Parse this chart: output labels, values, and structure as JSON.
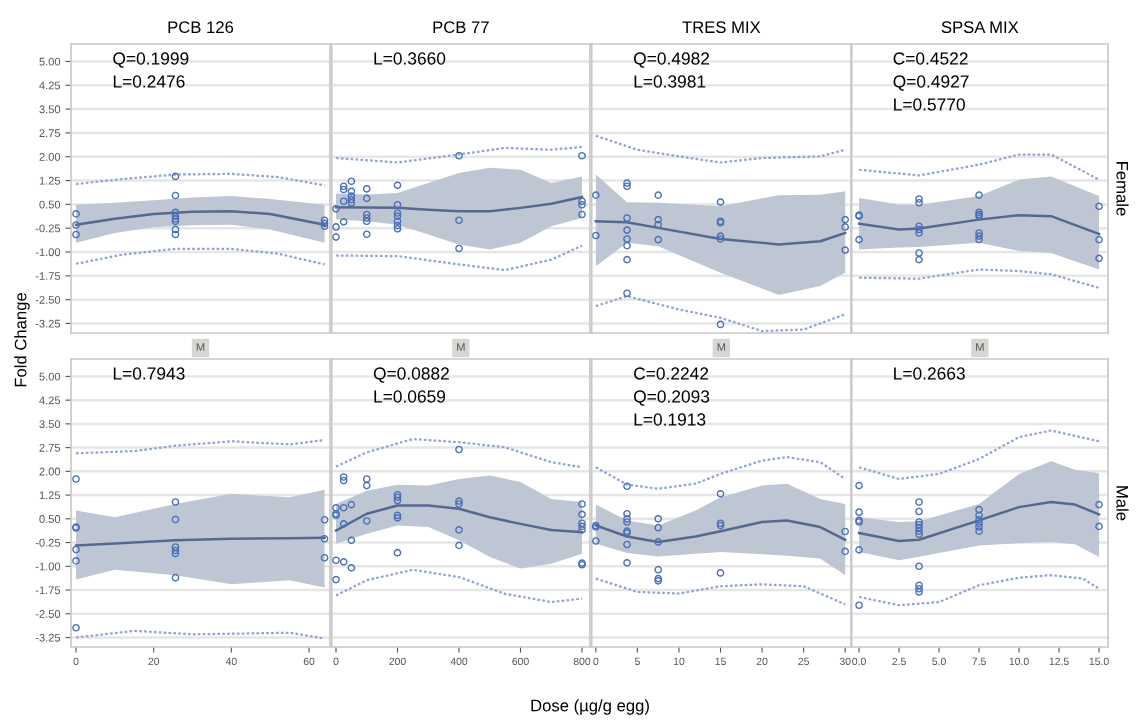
{
  "chart_data": [
    {
      "type": "scatter",
      "title": "PCB 126",
      "ylabel": "Fold Change",
      "annotations": [
        "Q=0.1999",
        "L=0.2476"
      ],
      "xlim": [
        -1.3,
        65.4
      ],
      "ylim": [
        -3.55,
        5.55
      ],
      "yticks": [
        {
          "value": 5,
          "label": "5.00"
        },
        {
          "value": 4.25,
          "label": "4.25"
        },
        {
          "value": 3.5,
          "label": "3.50"
        },
        {
          "value": 2.75,
          "label": "2.75"
        },
        {
          "value": 2,
          "label": "2.00"
        },
        {
          "value": 1.25,
          "label": "1.25"
        },
        {
          "value": 0.5,
          "label": "0.50"
        },
        {
          "value": -0.25,
          "label": "-0.25"
        },
        {
          "value": -1,
          "label": "-1.00"
        },
        {
          "value": -1.75,
          "label": "-1.75"
        },
        {
          "value": -2.5,
          "label": "-2.50"
        },
        {
          "value": -3.25,
          "label": "-3.25"
        }
      ],
      "tick_labels": "y",
      "grid": "y",
      "series": [
        {
          "marker": "circle",
          "color": "#4a6fb5",
          "x": [
            0,
            0,
            0,
            25.6,
            25.6,
            25.6,
            25.6,
            25.6,
            25.6,
            25.6,
            25.6,
            64,
            64,
            64
          ],
          "values": [
            0.2,
            -0.15,
            -0.45,
            1.38,
            0.78,
            0.25,
            0.13,
            0.04,
            -0.03,
            -0.29,
            -0.45,
            0.0,
            -0.1,
            -0.19
          ]
        },
        {
          "type": "line",
          "color": "#55698f",
          "x": [
            0,
            10,
            20,
            30,
            40,
            50,
            64
          ],
          "values": [
            -0.14,
            0.05,
            0.2,
            0.27,
            0.28,
            0.2,
            -0.14
          ],
          "lower": [
            -0.71,
            -0.4,
            -0.22,
            -0.16,
            -0.14,
            -0.29,
            -0.71
          ],
          "upper": [
            0.49,
            0.55,
            0.63,
            0.72,
            0.76,
            0.67,
            0.49
          ]
        },
        {
          "type": "line",
          "line_style": "dotted",
          "color": "#8fa3d8",
          "x": [
            0,
            12,
            25.6,
            40,
            52,
            64
          ],
          "values": [
            1.14,
            1.3,
            1.44,
            1.46,
            1.36,
            1.1
          ]
        },
        {
          "type": "line",
          "line_style": "dotted",
          "color": "#8fa3d8",
          "x": [
            0,
            12,
            25.6,
            40,
            52,
            64
          ],
          "values": [
            -1.37,
            -1.08,
            -0.9,
            -0.9,
            -1.05,
            -1.39
          ]
        }
      ]
    },
    {
      "type": "scatter",
      "title": "PCB 77",
      "annotations": [
        "L=0.3660"
      ],
      "xlim": [
        -14,
        826
      ],
      "ylim": [
        -3.55,
        5.55
      ],
      "yticks": [
        5,
        4.25,
        3.5,
        2.75,
        2,
        1.25,
        0.5,
        -0.25,
        -1,
        -1.75,
        -2.5,
        -3.25
      ],
      "tick_labels": false,
      "grid": "y",
      "series": [
        {
          "marker": "circle",
          "color": "#4a6fb5",
          "x": [
            0,
            0,
            0,
            25,
            25,
            25,
            25,
            50,
            50,
            50,
            50,
            50,
            100,
            100,
            100,
            100,
            100,
            100,
            200,
            200,
            200,
            200,
            200,
            200,
            200,
            400,
            400,
            400,
            800,
            800,
            800,
            800
          ],
          "values": [
            0.36,
            -0.21,
            -0.53,
            1.07,
            0.97,
            0.6,
            -0.05,
            1.23,
            0.91,
            0.76,
            0.65,
            0.55,
            0.99,
            0.69,
            0.18,
            0.07,
            -0.03,
            -0.44,
            1.1,
            0.49,
            0.23,
            0.13,
            -0.03,
            -0.17,
            -0.27,
            2.03,
            0.0,
            -0.89,
            2.03,
            0.6,
            0.49,
            0.18
          ]
        },
        {
          "type": "line",
          "color": "#55698f",
          "x": [
            0,
            100,
            200,
            300,
            400,
            500,
            600,
            700,
            800
          ],
          "values": [
            0.41,
            0.4,
            0.39,
            0.33,
            0.28,
            0.28,
            0.39,
            0.52,
            0.73
          ],
          "lower": [
            0.02,
            -0.03,
            -0.14,
            -0.45,
            -0.76,
            -0.92,
            -0.71,
            -0.19,
            0.07
          ],
          "upper": [
            0.84,
            0.81,
            0.86,
            1.17,
            1.49,
            1.65,
            1.59,
            1.17,
            1.38
          ]
        },
        {
          "type": "line",
          "line_style": "dotted",
          "color": "#8fa3d8",
          "x": [
            0,
            200,
            400,
            550,
            700,
            800
          ],
          "values": [
            1.96,
            1.82,
            2.07,
            2.28,
            2.22,
            2.31
          ]
        },
        {
          "type": "line",
          "line_style": "dotted",
          "color": "#8fa3d8",
          "x": [
            0,
            200,
            400,
            550,
            700,
            800
          ],
          "values": [
            -1.11,
            -1.13,
            -1.39,
            -1.57,
            -1.24,
            -0.8
          ]
        }
      ]
    },
    {
      "type": "scatter",
      "title": "TRES MIX",
      "annotations": [
        "Q=0.4982",
        "L=0.3981"
      ],
      "xlim": [
        -0.5,
        30.7
      ],
      "ylim": [
        -3.55,
        5.55
      ],
      "yticks": [
        5,
        4.25,
        3.5,
        2.75,
        2,
        1.25,
        0.5,
        -0.25,
        -1,
        -1.75,
        -2.5,
        -3.25
      ],
      "tick_labels": false,
      "grid": "y",
      "series": [
        {
          "marker": "circle",
          "color": "#4a6fb5",
          "x": [
            0,
            0,
            3.75,
            3.75,
            3.75,
            3.75,
            3.75,
            3.75,
            3.75,
            3.75,
            7.5,
            7.5,
            7.5,
            7.5,
            15,
            15,
            15,
            15,
            15,
            15,
            30,
            30,
            30
          ],
          "values": [
            0.79,
            -0.48,
            1.17,
            1.07,
            0.07,
            -0.31,
            -0.59,
            -0.8,
            -1.24,
            -2.3,
            0.79,
            0.02,
            -0.14,
            -0.61,
            0.57,
            -0.03,
            -0.08,
            -0.5,
            -0.59,
            -3.28,
            0.02,
            -0.21,
            -0.94
          ]
        },
        {
          "type": "line",
          "color": "#55698f",
          "x": [
            0,
            3.75,
            7.5,
            15,
            22,
            27,
            30
          ],
          "values": [
            -0.03,
            -0.06,
            -0.24,
            -0.59,
            -0.76,
            -0.66,
            -0.4
          ],
          "lower": [
            -1.45,
            -0.71,
            -0.82,
            -1.65,
            -2.35,
            -2.07,
            -1.65
          ],
          "upper": [
            1.44,
            0.57,
            0.55,
            0.44,
            0.79,
            0.8,
            0.91
          ]
        },
        {
          "type": "line",
          "line_style": "dotted",
          "color": "#8fa3d8",
          "x": [
            0,
            5,
            10,
            15,
            20,
            27,
            30
          ],
          "values": [
            2.66,
            2.22,
            2.01,
            1.82,
            1.96,
            2.01,
            2.22
          ]
        },
        {
          "type": "line",
          "line_style": "dotted",
          "color": "#8fa3d8",
          "x": [
            0,
            3.75,
            10,
            15,
            20,
            25,
            30
          ],
          "values": [
            -2.7,
            -2.39,
            -2.81,
            -3.07,
            -3.49,
            -3.44,
            -2.96
          ]
        }
      ]
    },
    {
      "type": "scatter",
      "title": "SPSA MIX",
      "y2label": "Female",
      "annotations": [
        "C=0.4522",
        "Q=0.4927",
        "L=0.5770"
      ],
      "xlim": [
        -0.46,
        15.56
      ],
      "ylim": [
        -3.55,
        5.55
      ],
      "yticks": [
        5,
        4.25,
        3.5,
        2.75,
        2,
        1.25,
        0.5,
        -0.25,
        -1,
        -1.75,
        -2.5,
        -3.25
      ],
      "tick_labels": false,
      "grid": "y",
      "series": [
        {
          "marker": "circle",
          "color": "#4a6fb5",
          "x": [
            0,
            0,
            0,
            3.75,
            3.75,
            3.75,
            3.75,
            3.75,
            3.75,
            3.75,
            7.5,
            7.5,
            7.5,
            7.5,
            7.5,
            7.5,
            7.5,
            15,
            15,
            15
          ],
          "values": [
            0.16,
            0.13,
            -0.61,
            0.67,
            0.55,
            -0.19,
            -0.29,
            -0.4,
            -1.03,
            -1.24,
            0.79,
            0.25,
            0.18,
            0.13,
            -0.4,
            -0.5,
            -0.61,
            0.44,
            -0.61,
            -1.2
          ]
        },
        {
          "type": "line",
          "color": "#55698f",
          "x": [
            0,
            2.5,
            3.75,
            7.5,
            10,
            12,
            15
          ],
          "values": [
            -0.11,
            -0.29,
            -0.26,
            0.02,
            0.16,
            0.13,
            -0.43
          ],
          "lower": [
            -0.92,
            -0.86,
            -0.84,
            -0.71,
            -0.97,
            -1.03,
            -1.55
          ],
          "upper": [
            0.7,
            0.5,
            0.49,
            0.76,
            1.28,
            1.38,
            0.76
          ]
        },
        {
          "type": "line",
          "line_style": "dotted",
          "color": "#8fa3d8",
          "x": [
            0,
            3.75,
            7.5,
            10,
            12,
            15
          ],
          "values": [
            1.59,
            1.41,
            1.75,
            2.07,
            2.07,
            1.28
          ]
        },
        {
          "type": "line",
          "line_style": "dotted",
          "color": "#8fa3d8",
          "x": [
            0,
            3.75,
            7.5,
            10,
            12,
            15
          ],
          "values": [
            -1.81,
            -1.84,
            -1.55,
            -1.6,
            -1.7,
            -2.13
          ]
        }
      ]
    },
    {
      "type": "scatter",
      "subtitle": "M",
      "annotations": [
        "L=0.7943"
      ],
      "xlim": [
        -1.3,
        65.4
      ],
      "xticks": [
        0,
        20,
        40,
        60
      ],
      "ylim": [
        -3.55,
        5.55
      ],
      "yticks": [
        {
          "value": 5,
          "label": "5.00"
        },
        {
          "value": 4.25,
          "label": "4.25"
        },
        {
          "value": 3.5,
          "label": "3.50"
        },
        {
          "value": 2.75,
          "label": "2.75"
        },
        {
          "value": 2,
          "label": "2.00"
        },
        {
          "value": 1.25,
          "label": "1.25"
        },
        {
          "value": 0.5,
          "label": "0.50"
        },
        {
          "value": -0.25,
          "label": "-0.25"
        },
        {
          "value": -1,
          "label": "-1.00"
        },
        {
          "value": -1.75,
          "label": "-1.75"
        },
        {
          "value": -2.5,
          "label": "-2.50"
        },
        {
          "value": -3.25,
          "label": "-3.25"
        }
      ],
      "grid": "y",
      "series": [
        {
          "marker": "circle",
          "color": "#4a6fb5",
          "x": [
            0,
            0,
            0,
            0,
            0,
            0,
            25.6,
            25.6,
            25.6,
            25.6,
            25.6,
            25.6,
            64,
            64,
            64
          ],
          "values": [
            1.76,
            0.24,
            0.21,
            -0.47,
            -0.83,
            -2.94,
            1.03,
            0.48,
            -0.39,
            -0.5,
            -0.6,
            -1.36,
            0.47,
            -0.13,
            -0.73
          ]
        },
        {
          "type": "line",
          "color": "#55698f",
          "x": [
            0,
            10,
            25.6,
            40,
            55,
            64
          ],
          "values": [
            -0.34,
            -0.28,
            -0.18,
            -0.13,
            -0.11,
            -0.1
          ],
          "lower": [
            -1.42,
            -1.11,
            -1.28,
            -1.57,
            -1.44,
            -1.67
          ],
          "upper": [
            0.76,
            0.55,
            0.97,
            1.29,
            1.18,
            1.42
          ]
        },
        {
          "type": "line",
          "line_style": "dotted",
          "color": "#8fa3d8",
          "x": [
            0,
            15,
            25.6,
            40,
            55,
            64
          ],
          "values": [
            2.57,
            2.64,
            2.81,
            2.95,
            2.85,
            2.99
          ]
        },
        {
          "type": "line",
          "line_style": "dotted",
          "color": "#8fa3d8",
          "x": [
            0,
            15,
            30,
            55,
            64
          ],
          "values": [
            -3.25,
            -3.04,
            -3.15,
            -3.1,
            -3.28
          ]
        }
      ]
    },
    {
      "type": "scatter",
      "subtitle": "M",
      "xlabel": "Dose (µg/g egg)",
      "annotations": [
        "Q=0.0882",
        "L=0.0659"
      ],
      "xlim": [
        -14,
        826
      ],
      "xticks": [
        0,
        200,
        400,
        600,
        800
      ],
      "ylim": [
        -3.55,
        5.55
      ],
      "yticks": [
        5,
        4.25,
        3.5,
        2.75,
        2,
        1.25,
        0.5,
        -0.25,
        -1,
        -1.75,
        -2.5,
        -3.25
      ],
      "tick_labels": "x",
      "grid": "y",
      "series": [
        {
          "marker": "circle",
          "color": "#4a6fb5",
          "x": [
            0,
            0,
            0,
            0,
            0,
            25,
            25,
            25,
            25,
            25,
            50,
            50,
            50,
            100,
            100,
            100,
            200,
            200,
            200,
            200,
            200,
            200,
            400,
            400,
            400,
            400,
            400,
            800,
            800,
            800,
            800,
            800,
            800,
            800
          ],
          "values": [
            0.85,
            0.66,
            0.61,
            -0.81,
            -1.42,
            1.82,
            1.71,
            0.85,
            0.34,
            -0.86,
            0.95,
            -0.18,
            -1.05,
            1.76,
            1.55,
            0.43,
            1.26,
            1.18,
            1.08,
            0.61,
            0.53,
            -0.57,
            2.69,
            1.06,
            0.97,
            0.15,
            -0.34,
            0.97,
            0.64,
            0.36,
            0.26,
            0.15,
            -0.9,
            -0.95
          ]
        },
        {
          "type": "line",
          "color": "#55698f",
          "x": [
            0,
            100,
            200,
            300,
            400,
            500,
            600,
            700,
            800
          ],
          "values": [
            0.13,
            0.66,
            0.92,
            0.92,
            0.82,
            0.55,
            0.34,
            0.15,
            0.08
          ],
          "lower": [
            -0.29,
            0.03,
            0.29,
            0.24,
            -0.18,
            -0.71,
            -1.07,
            -0.92,
            -0.6
          ],
          "upper": [
            0.97,
            1.39,
            1.58,
            1.55,
            1.76,
            1.87,
            1.66,
            1.13,
            1.03
          ]
        },
        {
          "type": "line",
          "line_style": "dotted",
          "color": "#8fa3d8",
          "x": [
            0,
            100,
            250,
            400,
            550,
            700,
            800
          ],
          "values": [
            2.15,
            2.6,
            3.02,
            2.92,
            2.76,
            2.29,
            2.13
          ]
        },
        {
          "type": "line",
          "line_style": "dotted",
          "color": "#8fa3d8",
          "x": [
            0,
            100,
            250,
            400,
            550,
            700,
            800
          ],
          "values": [
            -1.92,
            -1.44,
            -1.11,
            -1.34,
            -1.87,
            -2.13,
            -2.02
          ]
        }
      ]
    },
    {
      "type": "scatter",
      "subtitle": "M",
      "annotations": [
        "C=0.2242",
        "Q=0.2093",
        "L=0.1913"
      ],
      "xlim": [
        -0.5,
        30.7
      ],
      "xticks": [
        0,
        5,
        10,
        15,
        20,
        25,
        30
      ],
      "ylim": [
        -3.55,
        5.55
      ],
      "yticks": [
        5,
        4.25,
        3.5,
        2.75,
        2,
        1.25,
        0.5,
        -0.25,
        -1,
        -1.75,
        -2.5,
        -3.25
      ],
      "tick_labels": "x",
      "grid": "y",
      "series": [
        {
          "marker": "circle",
          "color": "#4a6fb5",
          "x": [
            0,
            0,
            0,
            3.75,
            3.75,
            3.75,
            3.75,
            3.75,
            3.75,
            3.75,
            3.75,
            7.5,
            7.5,
            7.5,
            7.5,
            7.5,
            7.5,
            15,
            15,
            15,
            15,
            30,
            30
          ],
          "values": [
            0.29,
            0.24,
            -0.2,
            1.53,
            0.66,
            0.5,
            0.4,
            0.11,
            0.05,
            -0.31,
            -0.89,
            0.5,
            0.22,
            -0.23,
            -1.11,
            -1.39,
            -1.46,
            1.29,
            0.36,
            0.29,
            -1.21,
            0.1,
            -0.53
          ]
        },
        {
          "type": "line",
          "color": "#55698f",
          "x": [
            0,
            3.75,
            7.5,
            12,
            15,
            20,
            23,
            27,
            30
          ],
          "values": [
            0.29,
            -0.06,
            -0.23,
            -0.06,
            0.11,
            0.4,
            0.45,
            0.24,
            -0.16
          ],
          "lower": [
            -0.29,
            -0.58,
            -0.69,
            -0.6,
            -0.55,
            -0.62,
            -0.67,
            -0.75,
            -1.28
          ],
          "upper": [
            0.95,
            0.45,
            0.29,
            0.76,
            1.18,
            1.55,
            1.61,
            1.13,
            0.97
          ]
        },
        {
          "type": "line",
          "line_style": "dotted",
          "color": "#8fa3d8",
          "x": [
            0,
            3.75,
            7.5,
            12,
            15,
            20,
            23,
            27,
            30
          ],
          "values": [
            2.13,
            1.58,
            1.45,
            1.61,
            1.92,
            2.34,
            2.45,
            2.29,
            1.76
          ]
        },
        {
          "type": "line",
          "line_style": "dotted",
          "color": "#8fa3d8",
          "x": [
            0,
            5,
            10,
            15,
            20,
            25,
            30
          ],
          "values": [
            -1.39,
            -1.81,
            -1.86,
            -1.63,
            -1.57,
            -1.63,
            -2.2
          ]
        }
      ]
    },
    {
      "type": "scatter",
      "subtitle": "M",
      "y2label": "Male",
      "annotations": [
        "L=0.2663"
      ],
      "xlim": [
        -0.46,
        15.56
      ],
      "xticks": [
        {
          "value": 0,
          "label": "0.0"
        },
        {
          "value": 2.5,
          "label": "2.5"
        },
        {
          "value": 5,
          "label": "5.0"
        },
        {
          "value": 7.5,
          "label": "7.5"
        },
        {
          "value": 10,
          "label": "10.0"
        },
        {
          "value": 12.5,
          "label": "12.5"
        },
        {
          "value": 15,
          "label": "15.0"
        }
      ],
      "ylim": [
        -3.55,
        5.55
      ],
      "yticks": [
        5,
        4.25,
        3.5,
        2.75,
        2,
        1.25,
        0.5,
        -0.25,
        -1,
        -1.75,
        -2.5,
        -3.25
      ],
      "tick_labels": "x",
      "grid": "y",
      "series": [
        {
          "marker": "circle",
          "color": "#4a6fb5",
          "x": [
            0,
            0,
            0,
            0,
            0,
            0,
            3.75,
            3.75,
            3.75,
            3.75,
            3.75,
            3.75,
            3.75,
            3.75,
            3.75,
            3.75,
            3.75,
            7.5,
            7.5,
            7.5,
            7.5,
            7.5,
            7.5,
            15,
            15
          ],
          "values": [
            1.55,
            0.71,
            0.45,
            0.4,
            -0.48,
            -2.23,
            1.03,
            0.73,
            0.4,
            0.32,
            0.22,
            0.11,
            0.01,
            -1.0,
            -1.6,
            -1.71,
            -1.81,
            0.79,
            0.61,
            0.47,
            0.36,
            0.24,
            0.11,
            0.95,
            0.26
          ]
        },
        {
          "type": "line",
          "color": "#55698f",
          "x": [
            0,
            2.5,
            3.75,
            7.5,
            10,
            12,
            13.5,
            15
          ],
          "values": [
            0.05,
            -0.2,
            -0.16,
            0.45,
            0.87,
            1.03,
            0.95,
            0.64
          ],
          "lower": [
            -0.55,
            -0.81,
            -0.7,
            -0.34,
            -0.27,
            -0.23,
            -0.3,
            -0.71
          ],
          "upper": [
            0.55,
            0.4,
            0.42,
            0.97,
            1.92,
            2.32,
            2.05,
            1.94
          ]
        },
        {
          "type": "line",
          "line_style": "dotted",
          "color": "#8fa3d8",
          "x": [
            0,
            2.5,
            5,
            7.5,
            10,
            12,
            15
          ],
          "values": [
            2.13,
            1.76,
            1.92,
            2.39,
            3.08,
            3.29,
            2.95
          ]
        },
        {
          "type": "line",
          "line_style": "dotted",
          "color": "#8fa3d8",
          "x": [
            0,
            2.5,
            5,
            7.5,
            10,
            12,
            14,
            15
          ],
          "values": [
            -1.97,
            -2.23,
            -2.13,
            -1.6,
            -1.36,
            -1.28,
            -1.39,
            -1.71
          ]
        }
      ]
    }
  ]
}
